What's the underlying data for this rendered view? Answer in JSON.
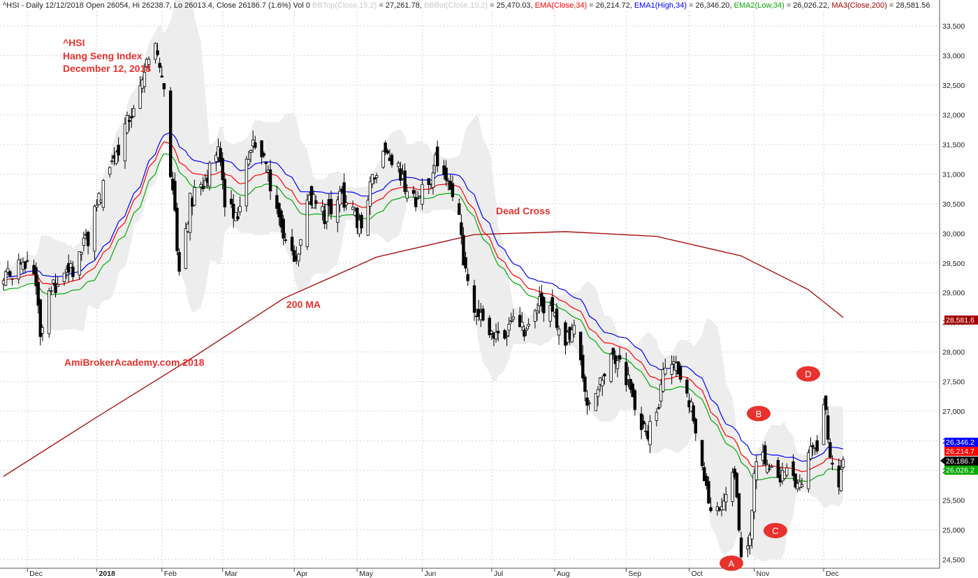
{
  "header": {
    "prefix": "^HSI - Daily 12/12/2018 Open 26054, Hi 26238.7, Lo 26013.4, Close 26186.7 (1.6%) Vol 0 ",
    "bbtop_label": "BBTop(Close,15,2)",
    "bbtop_value": " = 27,261.78, ",
    "bbbot_label": "BBBot(Close,15,2)",
    "bbbot_value": " = 25,470.03, ",
    "ema_label": "EMA(Close,34)",
    "ema_value": " = 26,214.72, ",
    "ema1_label": "EMA1(High,34)",
    "ema1_value": " = 26,346.20, ",
    "ema2_label": "EMA2(Low,34)",
    "ema2_value": " = 26,026.22, ",
    "ma3_label": "MA3(Close,200)",
    "ma3_value": " = 28,581.56"
  },
  "colors": {
    "bg": "#ffffff",
    "grid": "#d4d4d4",
    "band_fill": "#ededed",
    "ema_close": "#ff0000",
    "ema_high": "#0000ff",
    "ema_low": "#00aa00",
    "ma200": "#a30000",
    "candle": "#000000",
    "annotation": "#e8322d",
    "bbtop_text": "#c9c9c9",
    "bbbot_text": "#c9c9c9"
  },
  "annotations": {
    "title_line1": "^HSI",
    "title_line2": "Hang Seng Index",
    "title_line3": "December 12, 2018",
    "dead_cross": "Dead Cross",
    "ma_label": "200 MA",
    "watermark": "AmiBrokerAcademy.com  2018"
  },
  "markers": [
    {
      "label": "A",
      "date_index": 215,
      "price": 24435
    },
    {
      "label": "B",
      "date_index": 222,
      "price": 26960
    },
    {
      "label": "C",
      "date_index": 229,
      "price": 24985
    },
    {
      "label": "D",
      "date_index": 239,
      "price": 27630
    }
  ],
  "price_tags": [
    {
      "text": "28,581.6",
      "price": 28581.56,
      "color": "#a30000"
    },
    {
      "text": "26,346.2",
      "price": 26346.2,
      "color": "#0000ff"
    },
    {
      "text": "26,214.7",
      "price": 26214.72,
      "color": "#ff0000"
    },
    {
      "text": "26,186.7",
      "price": 26186.7,
      "color": "#000000"
    },
    {
      "text": "26,026.2",
      "price": 26026.22,
      "color": "#00aa00"
    }
  ],
  "chart_data": {
    "type": "candlestick",
    "title": "^HSI Hang Seng Index — Daily",
    "ylim": [
      24350,
      33750
    ],
    "y_ticks": [
      "24,500",
      "25,000",
      "25,500",
      "26,000",
      "26,500",
      "27,000",
      "27,500",
      "28,000",
      "28,500",
      "29,000",
      "29,500",
      "30,000",
      "30,500",
      "31,000",
      "31,500",
      "32,000",
      "32,500",
      "33,000",
      "33,500"
    ],
    "y_tick_values": [
      24500,
      25000,
      25500,
      26000,
      26500,
      27000,
      27500,
      28000,
      28500,
      29000,
      29500,
      30000,
      30500,
      31000,
      31500,
      32000,
      32500,
      33000,
      33500
    ],
    "x_ticks": [
      "Dec",
      "2018",
      "Feb",
      "Mar",
      "Apr",
      "May",
      "Jun",
      "Jul",
      "Aug",
      "Sep",
      "Oct",
      "Nov",
      "Dec"
    ],
    "x_tick_dates": [
      "2017-12-01",
      "2018-01-02",
      "2018-02-01",
      "2018-03-01",
      "2018-04-03",
      "2018-05-02",
      "2018-06-01",
      "2018-07-03",
      "2018-08-01",
      "2018-09-03",
      "2018-10-02",
      "2018-11-01",
      "2018-12-03"
    ],
    "bold_tick": "2018",
    "grid": true,
    "start_date": "2017-11-20",
    "end_date": "2018-12-12",
    "close_anchors": [
      [
        "2017-11-20",
        29200
      ],
      [
        "2017-11-28",
        29600
      ],
      [
        "2017-12-04",
        29300
      ],
      [
        "2017-12-07",
        28400
      ],
      [
        "2017-12-12",
        29100
      ],
      [
        "2017-12-20",
        29300
      ],
      [
        "2017-12-29",
        29900
      ],
      [
        "2018-01-05",
        30800
      ],
      [
        "2018-01-12",
        31400
      ],
      [
        "2018-01-19",
        32200
      ],
      [
        "2018-01-26",
        33100
      ],
      [
        "2018-01-29",
        33300
      ],
      [
        "2018-02-02",
        32600
      ],
      [
        "2018-02-06",
        30600
      ],
      [
        "2018-02-09",
        29500
      ],
      [
        "2018-02-14",
        30500
      ],
      [
        "2018-02-22",
        31000
      ],
      [
        "2018-02-27",
        31300
      ],
      [
        "2018-03-02",
        30600
      ],
      [
        "2018-03-07",
        30200
      ],
      [
        "2018-03-13",
        31400
      ],
      [
        "2018-03-16",
        31500
      ],
      [
        "2018-03-22",
        31000
      ],
      [
        "2018-03-26",
        30300
      ],
      [
        "2018-04-04",
        29600
      ],
      [
        "2018-04-10",
        30700
      ],
      [
        "2018-04-17",
        30300
      ],
      [
        "2018-04-24",
        30600
      ],
      [
        "2018-05-03",
        30100
      ],
      [
        "2018-05-08",
        30700
      ],
      [
        "2018-05-14",
        31500
      ],
      [
        "2018-05-22",
        31000
      ],
      [
        "2018-05-29",
        30500
      ],
      [
        "2018-06-04",
        30800
      ],
      [
        "2018-06-07",
        31300
      ],
      [
        "2018-06-14",
        30800
      ],
      [
        "2018-06-18",
        30300
      ],
      [
        "2018-06-21",
        29300
      ],
      [
        "2018-06-28",
        28500
      ],
      [
        "2018-07-05",
        28200
      ],
      [
        "2018-07-12",
        28500
      ],
      [
        "2018-07-19",
        28300
      ],
      [
        "2018-07-25",
        28800
      ],
      [
        "2018-08-01",
        28600
      ],
      [
        "2018-08-06",
        28200
      ],
      [
        "2018-08-10",
        28300
      ],
      [
        "2018-08-16",
        27200
      ],
      [
        "2018-08-24",
        27700
      ],
      [
        "2018-08-31",
        27900
      ],
      [
        "2018-09-05",
        27400
      ],
      [
        "2018-09-12",
        26500
      ],
      [
        "2018-09-18",
        27100
      ],
      [
        "2018-09-21",
        27800
      ],
      [
        "2018-09-27",
        27800
      ],
      [
        "2018-10-03",
        27100
      ],
      [
        "2018-10-08",
        26200
      ],
      [
        "2018-10-11",
        25500
      ],
      [
        "2018-10-16",
        25400
      ],
      [
        "2018-10-22",
        26100
      ],
      [
        "2018-10-26",
        24700
      ],
      [
        "2018-10-30",
        24800
      ],
      [
        "2018-11-02",
        26300
      ],
      [
        "2018-11-08",
        26000
      ],
      [
        "2018-11-13",
        25800
      ],
      [
        "2018-11-16",
        26100
      ],
      [
        "2018-11-21",
        25700
      ],
      [
        "2018-11-27",
        26300
      ],
      [
        "2018-11-30",
        26500
      ],
      [
        "2018-12-03",
        27200
      ],
      [
        "2018-12-06",
        26200
      ],
      [
        "2018-12-10",
        25800
      ],
      [
        "2018-12-12",
        26186.7
      ]
    ],
    "series": [
      {
        "name": "BBTop(Close,15,2)",
        "last": 27261.78
      },
      {
        "name": "BBBot(Close,15,2)",
        "last": 25470.03
      },
      {
        "name": "EMA(Close,34)",
        "last": 26214.72
      },
      {
        "name": "EMA1(High,34)",
        "last": 26346.2
      },
      {
        "name": "EMA2(Low,34)",
        "last": 26026.22
      },
      {
        "name": "MA3(Close,200)",
        "last": 28581.56
      }
    ]
  }
}
